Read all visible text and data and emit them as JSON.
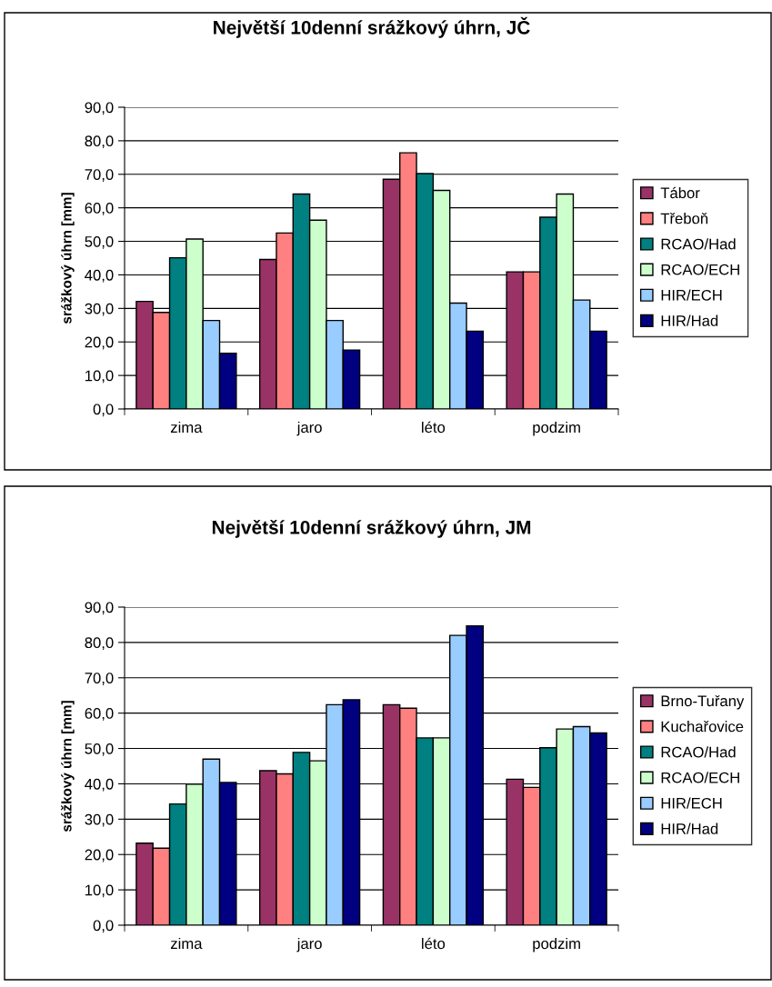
{
  "chart_data": [
    {
      "type": "bar",
      "title": "Největší 10denní srážkový úhrn, JČ",
      "ylabel": "srážkový úhrn [mm]",
      "categories": [
        "zima",
        "jaro",
        "léto",
        "podzim"
      ],
      "series": [
        {
          "name": "Tábor",
          "color": "#993366",
          "values": [
            32.1,
            44.6,
            68.5,
            40.9
          ]
        },
        {
          "name": "Třeboň",
          "color": "#ff8080",
          "values": [
            28.8,
            52.5,
            76.4,
            40.9
          ]
        },
        {
          "name": "RCAO/Had",
          "color": "#008080",
          "values": [
            45.1,
            64.1,
            70.2,
            57.2
          ]
        },
        {
          "name": "RCAO/ECH",
          "color": "#ccffcc",
          "values": [
            50.7,
            56.3,
            65.2,
            64.1
          ]
        },
        {
          "name": "HIR/ECH",
          "color": "#99ccff",
          "values": [
            26.4,
            26.4,
            31.6,
            32.5
          ]
        },
        {
          "name": "HIR/Had",
          "color": "#000080",
          "values": [
            16.6,
            17.6,
            23.2,
            23.2
          ]
        }
      ],
      "ylim": [
        0,
        90
      ],
      "yticks": [
        {
          "value": 0,
          "label": "0,0"
        },
        {
          "value": 10,
          "label": "10,0"
        },
        {
          "value": 20,
          "label": "20,0"
        },
        {
          "value": 30,
          "label": "30,0"
        },
        {
          "value": 40,
          "label": "40,0"
        },
        {
          "value": 50,
          "label": "50,0"
        },
        {
          "value": 60,
          "label": "60,0"
        },
        {
          "value": 70,
          "label": "70,0"
        },
        {
          "value": 80,
          "label": "80,0"
        },
        {
          "value": 90,
          "label": "90,0"
        }
      ],
      "grid": "y",
      "legend": "right"
    },
    {
      "type": "bar",
      "title": "Největší 10denní srážkový úhrn, JM",
      "ylabel": "srážkový úhrn [mm]",
      "categories": [
        "zima",
        "jaro",
        "léto",
        "podzim"
      ],
      "series": [
        {
          "name": "Brno-Tuřany",
          "color": "#993366",
          "values": [
            23.2,
            43.7,
            62.4,
            41.3
          ]
        },
        {
          "name": "Kuchařovice",
          "color": "#ff8080",
          "values": [
            21.8,
            42.8,
            61.4,
            39.0
          ]
        },
        {
          "name": "RCAO/Had",
          "color": "#008080",
          "values": [
            34.3,
            48.9,
            53.0,
            50.2
          ]
        },
        {
          "name": "RCAO/ECH",
          "color": "#ccffcc",
          "values": [
            39.9,
            46.5,
            53.0,
            55.5
          ]
        },
        {
          "name": "HIR/ECH",
          "color": "#99ccff",
          "values": [
            47.0,
            62.4,
            82.0,
            56.2
          ]
        },
        {
          "name": "HIR/Had",
          "color": "#000080",
          "values": [
            40.4,
            63.8,
            84.7,
            54.4
          ]
        }
      ],
      "ylim": [
        0,
        90
      ],
      "yticks": [
        {
          "value": 0,
          "label": "0,0"
        },
        {
          "value": 10,
          "label": "10,0"
        },
        {
          "value": 20,
          "label": "20,0"
        },
        {
          "value": 30,
          "label": "30,0"
        },
        {
          "value": 40,
          "label": "40,0"
        },
        {
          "value": 50,
          "label": "50,0"
        },
        {
          "value": 60,
          "label": "60,0"
        },
        {
          "value": 70,
          "label": "70,0"
        },
        {
          "value": 80,
          "label": "80,0"
        },
        {
          "value": 90,
          "label": "90,0"
        }
      ],
      "grid": "y",
      "legend": "right"
    }
  ]
}
